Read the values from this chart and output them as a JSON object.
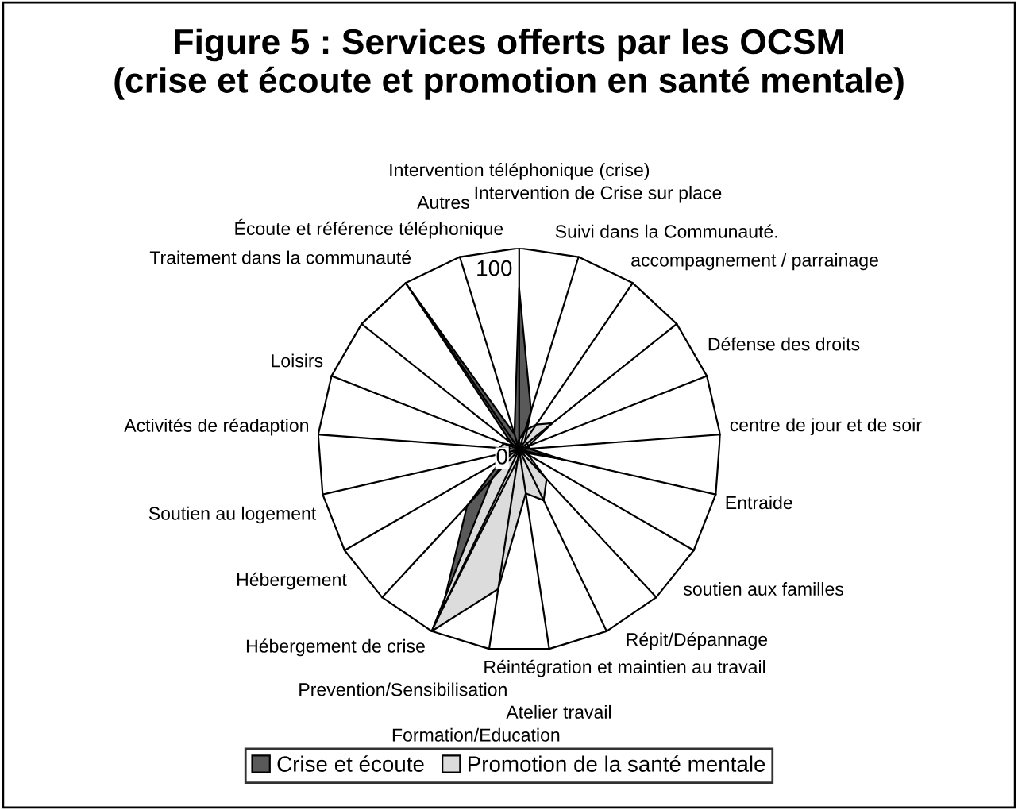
{
  "chart_data": {
    "type": "radar",
    "title": "Figure 5 : Services offerts par les OCSM\n(crise et écoute et promotion en santé mentale)",
    "categories": [
      "Intervention téléphonique (crise)",
      "Intervention de Crise sur place",
      "Suivi dans la Communauté.",
      "accompagnement / parrainage",
      "Défense des droits",
      "centre de jour et de soir",
      "Entraide",
      "soutien aux familles",
      "Répit/Dépannage",
      "Réintégration et maintien au travail",
      "Atelier travail",
      "Formation/Education",
      "Prevention/Sensibilisation",
      "Hébergement de crise",
      "Hébergement",
      "Soutien au logement",
      "Activités de réadaption",
      "Loisirs",
      "Traitement dans la communauté",
      "Écoute et référence téléphonique",
      "Autres"
    ],
    "series": [
      {
        "name": "Crise et écoute",
        "color": "#595959",
        "values": [
          80,
          20,
          5,
          5,
          5,
          5,
          22,
          3,
          3,
          2,
          3,
          5,
          88,
          38,
          10,
          5,
          5,
          5,
          5,
          100,
          8
        ]
      },
      {
        "name": "Promotion de la santé mentale",
        "color": "#dcdcdc",
        "values": [
          5,
          10,
          15,
          21,
          5,
          3,
          3,
          5,
          20,
          28,
          22,
          70,
          100,
          20,
          5,
          10,
          10,
          8,
          3,
          3,
          3
        ]
      }
    ],
    "ylim": [
      0,
      100
    ],
    "yticks": [
      0,
      100
    ],
    "grid": true,
    "legend": "bottom"
  }
}
